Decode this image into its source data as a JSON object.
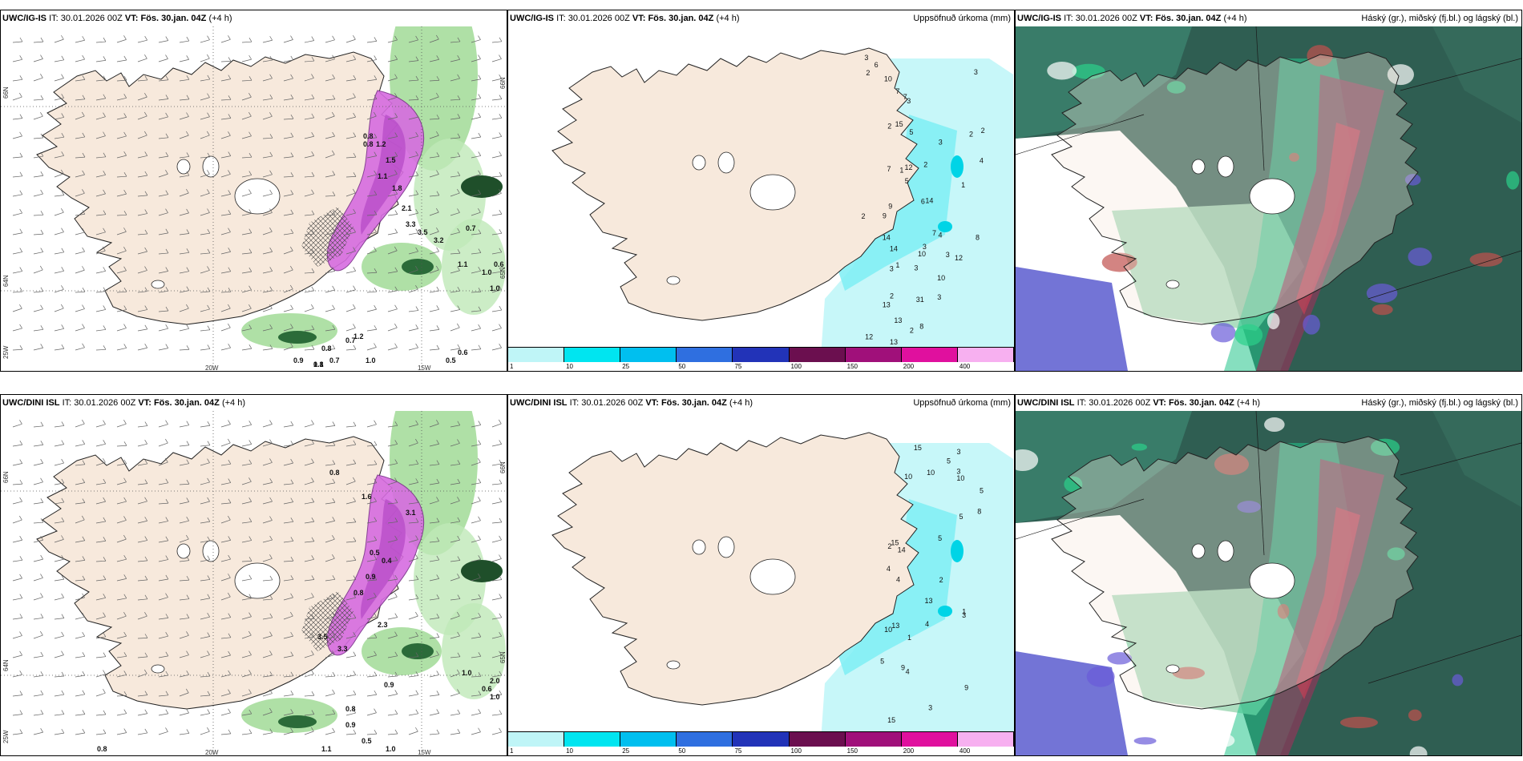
{
  "rows": [
    {
      "panels": [
        {
          "model": "UWC/IG-IS",
          "it_label": "IT:",
          "it_value": "30.01.2026 00Z",
          "vt_label": "VT:",
          "vt_value": "Fös. 30.jan. 04Z",
          "lead": "(+4 h)",
          "title": ""
        },
        {
          "model": "UWC/IG-IS",
          "it_label": "IT:",
          "it_value": "30.01.2026 00Z",
          "vt_label": "VT:",
          "vt_value": "Fös. 30.jan. 04Z",
          "lead": "(+4 h)",
          "title": "Uppsöfnuð úrkoma (mm)"
        },
        {
          "model": "UWC/IG-IS",
          "it_label": "IT:",
          "it_value": "30.01.2026 00Z",
          "vt_label": "VT:",
          "vt_value": "Fös. 30.jan. 04Z",
          "lead": "(+4 h)",
          "title": "Háský (gr.), miðský (fj.bl.) og lágský (bl.)"
        }
      ]
    },
    {
      "panels": [
        {
          "model": "UWC/DINI ISL",
          "it_label": "IT:",
          "it_value": "30.01.2026 00Z",
          "vt_label": "VT:",
          "vt_value": "Fös. 30.jan. 04Z",
          "lead": "(+4 h)",
          "title": ""
        },
        {
          "model": "UWC/DINI ISL",
          "it_label": "IT:",
          "it_value": "30.01.2026 00Z",
          "vt_label": "VT:",
          "vt_value": "Fös. 30.jan. 04Z",
          "lead": "(+4 h)",
          "title": "Uppsöfnuð úrkoma (mm)"
        },
        {
          "model": "UWC/DINI ISL",
          "it_label": "IT:",
          "it_value": "30.01.2026 00Z",
          "vt_label": "VT:",
          "vt_value": "Fös. 30.jan. 04Z",
          "lead": "(+4 h)",
          "title": "Háský (gr.), miðský (fj.bl.) og lágský (bl.)"
        }
      ]
    }
  ],
  "axis_labels": {
    "lon_left": "20W",
    "lon_right": "15W",
    "lat_top": "66N",
    "lat_bottom": "64N",
    "lat_mid": "65N",
    "lat_low": "25W"
  },
  "colorbar": {
    "ticks": [
      "1",
      "10",
      "25",
      "50",
      "75",
      "100",
      "150",
      "200",
      "400"
    ],
    "colors": [
      "#bff5f7",
      "#00e5f0",
      "#00bfef",
      "#2f6fe0",
      "#2233b8",
      "#6b0f4f",
      "#a0107a",
      "#e0109e",
      "#f7b0f0"
    ]
  },
  "precip_labels_top": [
    "2",
    "3",
    "2",
    "3",
    "2",
    "10",
    "3",
    "1",
    "12",
    "3",
    "3",
    "14",
    "13",
    "14",
    "10",
    "1",
    "3",
    "13",
    "15",
    "12",
    "4",
    "31",
    "13",
    "9",
    "9",
    "3",
    "14",
    "12",
    "2",
    "7",
    "7",
    "7",
    "2",
    "8",
    "6",
    "7",
    "10",
    "5",
    "3",
    "3",
    "2",
    "8",
    "4",
    "5",
    "6",
    "2",
    "2",
    "1"
  ],
  "precip_labels_bottom": [
    "3",
    "4",
    "14",
    "5",
    "15",
    "15",
    "1",
    "1",
    "3",
    "8",
    "10",
    "10",
    "13",
    "13",
    "15",
    "9",
    "3",
    "10",
    "4",
    "5",
    "9",
    "5",
    "5",
    "10",
    "3",
    "4",
    "5",
    "4",
    "2",
    "2"
  ],
  "wind_labels_top": [
    "0.8",
    "0.8",
    "1.2",
    "1.5",
    "1.1",
    "1.8",
    "2.1",
    "3.3",
    "3.5",
    "3.2",
    "0.7",
    "1.1",
    "1.0",
    "0.6",
    "1.0",
    "0.7",
    "1.2",
    "0.7",
    "1.0",
    "0.8",
    "0.9",
    "1.1",
    "0.5",
    "0.6",
    "0.8"
  ],
  "wind_labels_bottom": [
    "0.8",
    "1.6",
    "3.1",
    "0.5",
    "0.4",
    "0.9",
    "0.8",
    "2.3",
    "3.5",
    "3.3",
    "1.0",
    "0.6",
    "1.0",
    "2.0",
    "0.9",
    "0.8",
    "0.9",
    "0.5",
    "1.0",
    "1.1",
    "0.8"
  ]
}
